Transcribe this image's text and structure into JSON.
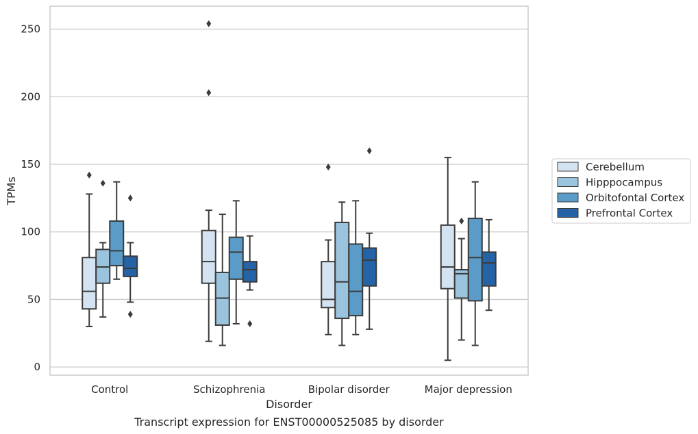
{
  "chart_data": {
    "type": "box",
    "caption": "Transcript expression for ENST00000525085 by disorder",
    "xlabel": "Disorder",
    "ylabel": "TPMs",
    "ylim": [
      -6,
      267
    ],
    "yticks": [
      0,
      50,
      100,
      150,
      200,
      250
    ],
    "grid": "horizontal",
    "legend_position": "right",
    "categories": [
      "Control",
      "Schizophrenia",
      "Bipolar disorder",
      "Major depression"
    ],
    "series": [
      {
        "name": "Cerebellum",
        "color": "#d4e3f2",
        "boxes": [
          {
            "whislo": 30,
            "q1": 43,
            "med": 56,
            "q3": 81,
            "whishi": 128,
            "fliers": [
              142
            ]
          },
          {
            "whislo": 19,
            "q1": 62,
            "med": 78,
            "q3": 101,
            "whishi": 116,
            "fliers": [
              203,
              254
            ]
          },
          {
            "whislo": 24,
            "q1": 44,
            "med": 50,
            "q3": 78,
            "whishi": 94,
            "fliers": [
              148
            ]
          },
          {
            "whislo": 5,
            "q1": 58,
            "med": 74,
            "q3": 105,
            "whishi": 155,
            "fliers": []
          }
        ]
      },
      {
        "name": "Hipppocampus",
        "color": "#9ac3de",
        "boxes": [
          {
            "whislo": 37,
            "q1": 62,
            "med": 74,
            "q3": 87,
            "whishi": 92,
            "fliers": [
              136
            ]
          },
          {
            "whislo": 16,
            "q1": 31,
            "med": 51,
            "q3": 70,
            "whishi": 113,
            "fliers": []
          },
          {
            "whislo": 16,
            "q1": 36,
            "med": 63,
            "q3": 107,
            "whishi": 122,
            "fliers": []
          },
          {
            "whislo": 20,
            "q1": 51,
            "med": 69,
            "q3": 72,
            "whishi": 95,
            "fliers": [
              108
            ]
          }
        ]
      },
      {
        "name": "Orbitofontal Cortex",
        "color": "#5b9bc7",
        "boxes": [
          {
            "whislo": 65,
            "q1": 75,
            "med": 86,
            "q3": 108,
            "whishi": 137,
            "fliers": []
          },
          {
            "whislo": 32,
            "q1": 65,
            "med": 85,
            "q3": 96,
            "whishi": 123,
            "fliers": []
          },
          {
            "whislo": 24,
            "q1": 38,
            "med": 56,
            "q3": 91,
            "whishi": 123,
            "fliers": []
          },
          {
            "whislo": 16,
            "q1": 49,
            "med": 81,
            "q3": 110,
            "whishi": 137,
            "fliers": []
          }
        ]
      },
      {
        "name": "Prefrontal Cortex",
        "color": "#2563a7",
        "boxes": [
          {
            "whislo": 48,
            "q1": 67,
            "med": 73,
            "q3": 82,
            "whishi": 92,
            "fliers": [
              39,
              125
            ]
          },
          {
            "whislo": 57,
            "q1": 63,
            "med": 72,
            "q3": 78,
            "whishi": 97,
            "fliers": [
              32
            ]
          },
          {
            "whislo": 28,
            "q1": 60,
            "med": 79,
            "q3": 88,
            "whishi": 99,
            "fliers": [
              160
            ]
          },
          {
            "whislo": 42,
            "q1": 60,
            "med": 77,
            "q3": 85,
            "whishi": 109,
            "fliers": []
          }
        ]
      }
    ]
  }
}
